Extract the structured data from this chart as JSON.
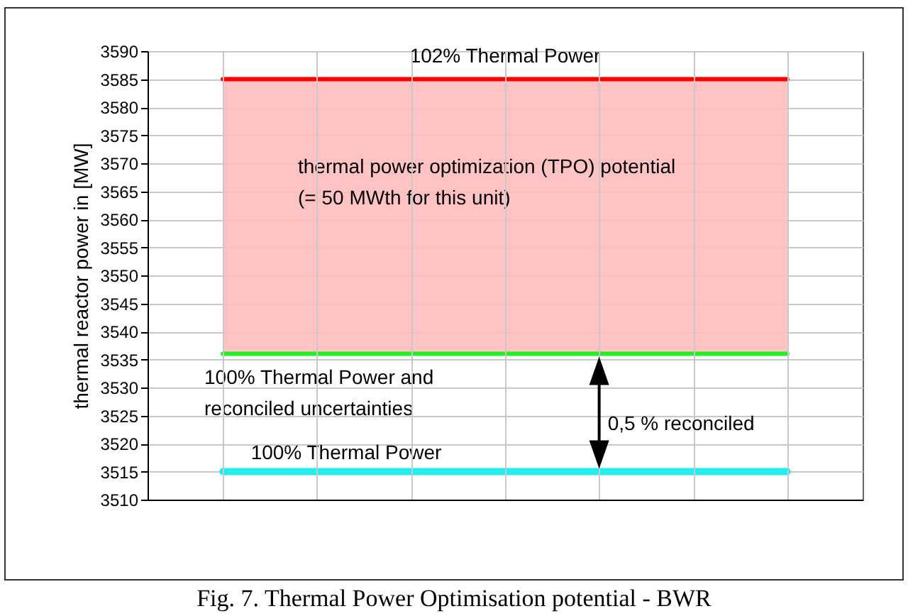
{
  "chart_data": {
    "type": "line",
    "title": "Fig. 7. Thermal Power Optimisation potential - BWR",
    "ylabel": "thermal reactor power in [MW]",
    "categories": [
      null,
      null,
      null,
      null,
      null,
      null,
      null
    ],
    "series": [
      {
        "name": "102% Thermal Power",
        "color": "#ff0000",
        "values": [
          3585,
          3585,
          3585,
          3585,
          3585,
          3585,
          3585
        ]
      },
      {
        "name": "100% Thermal Power  and\nreconciled uncertainties",
        "color": "#22ee22",
        "values": [
          3536,
          3536,
          3536,
          3536,
          3536,
          3536,
          3536
        ]
      },
      {
        "name": "100% Thermal Power",
        "color": "#22eeee",
        "values": [
          3515,
          3515,
          3515,
          3515,
          3515,
          3515,
          3515
        ]
      }
    ],
    "bands": [
      {
        "axis": "y",
        "from": 3536,
        "to": 3585,
        "label": "thermal power optimization (TPO) potential\n(= 50 MWth for this unit)",
        "color": "#ffbcbc"
      }
    ],
    "annotations": [
      "0,5 % reconciled"
    ],
    "ylim": [
      3510,
      3590
    ],
    "yticks": [
      3510,
      3515,
      3520,
      3525,
      3530,
      3535,
      3540,
      3545,
      3550,
      3555,
      3560,
      3565,
      3570,
      3575,
      3580,
      3585,
      3590
    ],
    "grid": true,
    "legend": false,
    "tick_labels": "y"
  }
}
